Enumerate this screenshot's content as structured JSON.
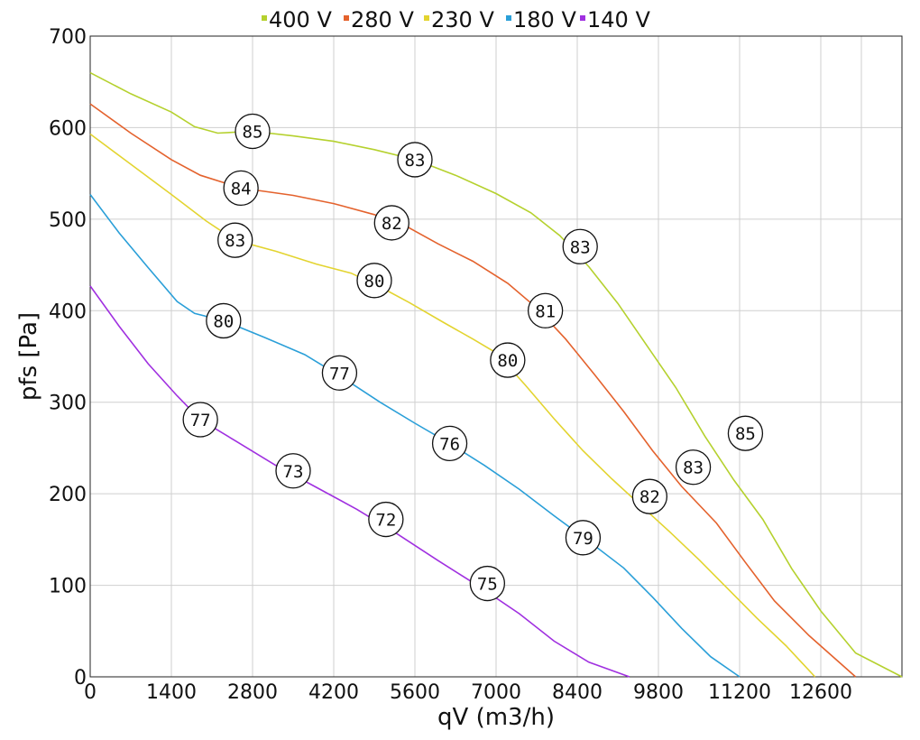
{
  "chart_data": {
    "type": "line",
    "xlabel": "qV (m3/h)",
    "ylabel": "pfs [Pa]",
    "xlim": [
      0,
      14000
    ],
    "ylim": [
      0,
      700
    ],
    "xticks": [
      0,
      1400,
      2800,
      4200,
      5600,
      7000,
      8400,
      9800,
      11200,
      12600
    ],
    "yticks": [
      0,
      100,
      200,
      300,
      400,
      500,
      600,
      700
    ],
    "grid": true,
    "legend_position": "top-center",
    "series": [
      {
        "name": "400 V",
        "color": "#b5d12e",
        "points": [
          [
            0,
            660
          ],
          [
            700,
            637
          ],
          [
            1400,
            617
          ],
          [
            1800,
            601
          ],
          [
            2200,
            594
          ],
          [
            2800,
            596
          ],
          [
            3500,
            591
          ],
          [
            4200,
            585
          ],
          [
            4900,
            576
          ],
          [
            5600,
            565
          ],
          [
            6300,
            548
          ],
          [
            7000,
            528
          ],
          [
            7600,
            507
          ],
          [
            8100,
            482
          ],
          [
            8600,
            448
          ],
          [
            9100,
            408
          ],
          [
            9600,
            362
          ],
          [
            10100,
            316
          ],
          [
            10600,
            263
          ],
          [
            11100,
            215
          ],
          [
            11600,
            172
          ],
          [
            12100,
            118
          ],
          [
            12600,
            72
          ],
          [
            13200,
            26
          ],
          [
            14000,
            0
          ]
        ],
        "markers": [
          {
            "x": 2800,
            "y": 596,
            "label": "85"
          },
          {
            "x": 5600,
            "y": 565,
            "label": "83"
          },
          {
            "x": 8450,
            "y": 470,
            "label": "83"
          },
          {
            "x": 11300,
            "y": 266,
            "label": "85"
          }
        ]
      },
      {
        "name": "280 V",
        "color": "#e4622d",
        "points": [
          [
            0,
            626
          ],
          [
            700,
            594
          ],
          [
            1400,
            565
          ],
          [
            1900,
            548
          ],
          [
            2600,
            534
          ],
          [
            3500,
            526
          ],
          [
            4200,
            517
          ],
          [
            4900,
            505
          ],
          [
            5400,
            494
          ],
          [
            6000,
            473
          ],
          [
            6600,
            454
          ],
          [
            7200,
            430
          ],
          [
            7700,
            403
          ],
          [
            8200,
            369
          ],
          [
            8700,
            330
          ],
          [
            9200,
            290
          ],
          [
            9700,
            247
          ],
          [
            10200,
            208
          ],
          [
            10800,
            168
          ],
          [
            11300,
            125
          ],
          [
            11800,
            83
          ],
          [
            12400,
            45
          ],
          [
            13200,
            0
          ]
        ],
        "markers": [
          {
            "x": 2600,
            "y": 534,
            "label": "84"
          },
          {
            "x": 5200,
            "y": 496,
            "label": "82"
          },
          {
            "x": 7850,
            "y": 400,
            "label": "81"
          },
          {
            "x": 10400,
            "y": 229,
            "label": "83"
          }
        ]
      },
      {
        "name": "230 V",
        "color": "#e3d430",
        "points": [
          [
            0,
            593
          ],
          [
            700,
            560
          ],
          [
            1400,
            527
          ],
          [
            2000,
            498
          ],
          [
            2500,
            477
          ],
          [
            3200,
            465
          ],
          [
            3900,
            451
          ],
          [
            4500,
            441
          ],
          [
            5000,
            426
          ],
          [
            5500,
            409
          ],
          [
            6100,
            387
          ],
          [
            6600,
            369
          ],
          [
            7000,
            354
          ],
          [
            7500,
            319
          ],
          [
            8000,
            282
          ],
          [
            8500,
            247
          ],
          [
            9000,
            216
          ],
          [
            9500,
            187
          ],
          [
            10000,
            158
          ],
          [
            10500,
            128
          ],
          [
            11000,
            96
          ],
          [
            11500,
            64
          ],
          [
            12000,
            34
          ],
          [
            12500,
            0
          ]
        ],
        "markers": [
          {
            "x": 2500,
            "y": 477,
            "label": "83"
          },
          {
            "x": 4900,
            "y": 433,
            "label": "80"
          },
          {
            "x": 7200,
            "y": 346,
            "label": "80"
          },
          {
            "x": 9650,
            "y": 197,
            "label": "82"
          }
        ]
      },
      {
        "name": "180 V",
        "color": "#2a9fd8",
        "points": [
          [
            0,
            527
          ],
          [
            500,
            485
          ],
          [
            1000,
            447
          ],
          [
            1500,
            410
          ],
          [
            1800,
            397
          ],
          [
            2300,
            389
          ],
          [
            3000,
            371
          ],
          [
            3700,
            352
          ],
          [
            4400,
            325
          ],
          [
            5000,
            300
          ],
          [
            5600,
            277
          ],
          [
            6200,
            255
          ],
          [
            6800,
            231
          ],
          [
            7400,
            205
          ],
          [
            8000,
            176
          ],
          [
            8600,
            148
          ],
          [
            9200,
            119
          ],
          [
            9700,
            87
          ],
          [
            10200,
            53
          ],
          [
            10700,
            22
          ],
          [
            11200,
            0
          ]
        ],
        "markers": [
          {
            "x": 2300,
            "y": 389,
            "label": "80"
          },
          {
            "x": 4300,
            "y": 332,
            "label": "77"
          },
          {
            "x": 6200,
            "y": 255,
            "label": "76"
          },
          {
            "x": 8500,
            "y": 152,
            "label": "79"
          }
        ]
      },
      {
        "name": "140 V",
        "color": "#a030e0",
        "points": [
          [
            0,
            427
          ],
          [
            500,
            383
          ],
          [
            1000,
            342
          ],
          [
            1500,
            307
          ],
          [
            1900,
            281
          ],
          [
            2500,
            258
          ],
          [
            3200,
            231
          ],
          [
            3900,
            207
          ],
          [
            4600,
            183
          ],
          [
            5300,
            156
          ],
          [
            6000,
            127
          ],
          [
            6700,
            99
          ],
          [
            7400,
            69
          ],
          [
            8000,
            39
          ],
          [
            8600,
            16
          ],
          [
            9300,
            0
          ]
        ],
        "markers": [
          {
            "x": 1900,
            "y": 281,
            "label": "77"
          },
          {
            "x": 3500,
            "y": 225,
            "label": "73"
          },
          {
            "x": 5100,
            "y": 172,
            "label": "72"
          },
          {
            "x": 6850,
            "y": 102,
            "label": "75"
          }
        ]
      }
    ]
  }
}
